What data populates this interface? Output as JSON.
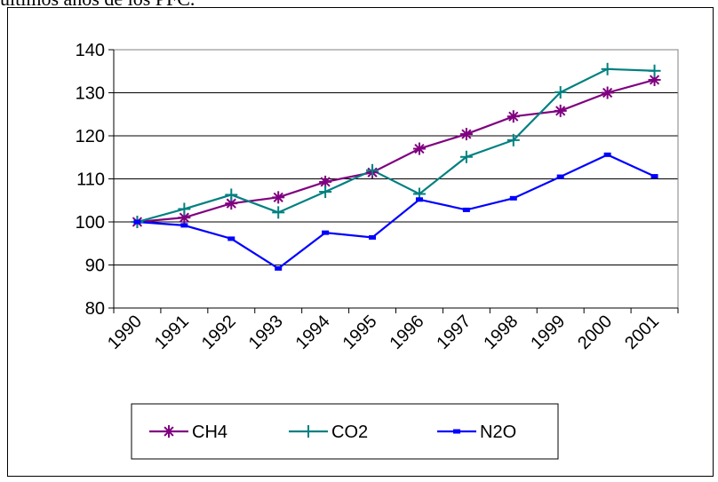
{
  "page": {
    "top_text": "últimos años de los PFC."
  },
  "chart_data": {
    "type": "line",
    "x": [
      "1990",
      "1991",
      "1992",
      "1993",
      "1994",
      "1995",
      "1996",
      "1997",
      "1998",
      "1999",
      "2000",
      "2001"
    ],
    "ylim": [
      80,
      140
    ],
    "yticks": [
      80,
      90,
      100,
      110,
      120,
      130,
      140
    ],
    "grid": true,
    "legend_position": "bottom",
    "series": [
      {
        "name": "CH4",
        "color": "#800080",
        "marker": "asterisk",
        "values": [
          100,
          101,
          104.3,
          105.7,
          109.3,
          111.5,
          117,
          120.4,
          124.5,
          125.8,
          130,
          133
        ]
      },
      {
        "name": "CO2",
        "color": "#008080",
        "marker": "plus",
        "values": [
          100,
          103,
          106.3,
          102.2,
          107,
          112,
          106.5,
          115.1,
          119,
          130.1,
          135.5,
          135.1
        ]
      },
      {
        "name": "N2O",
        "color": "#0000ff",
        "marker": "dash",
        "values": [
          100,
          99.2,
          96.1,
          89.2,
          97.5,
          96.4,
          105.2,
          102.8,
          105.5,
          110.5,
          115.6,
          110.6
        ]
      }
    ]
  }
}
